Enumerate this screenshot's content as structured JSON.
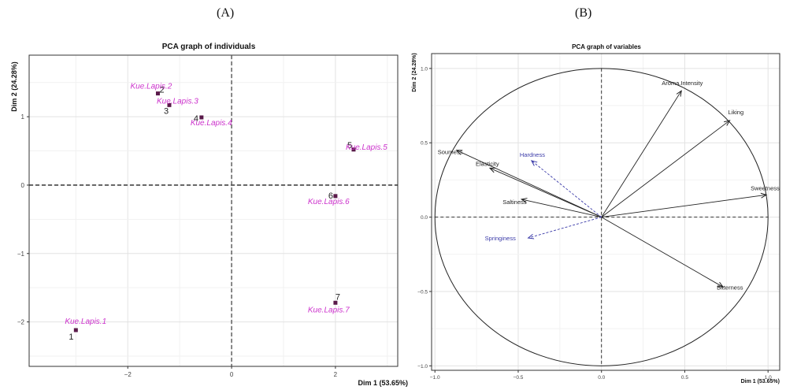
{
  "panel_labels": {
    "a": "(A)",
    "b": "(B)"
  },
  "chart_data": [
    {
      "type": "scatter",
      "title": "PCA graph of individuals",
      "xlabel": "Dim 1 (53.65%)",
      "ylabel": "Dim 2 (24.28%)",
      "xlim": [
        -3.9,
        3.2
      ],
      "ylim": [
        -2.65,
        1.9
      ],
      "xticks": [
        -2,
        0,
        2
      ],
      "yticks": [
        -2,
        -1,
        0,
        1
      ],
      "grid": true,
      "reference_lines": [
        0
      ],
      "point_color": "#5a1a4a",
      "label_color": "#cc33cc",
      "points": [
        {
          "id": "1",
          "name": "Kue.Lapis.1",
          "x": -3.0,
          "y": -2.12
        },
        {
          "id": "2",
          "name": "Kue.Lapis.2",
          "x": -1.42,
          "y": 1.34
        },
        {
          "id": "3",
          "name": "Kue.Lapis.3",
          "x": -1.2,
          "y": 1.17
        },
        {
          "id": "4",
          "name": "Kue.Lapis.4",
          "x": -0.58,
          "y": 0.99
        },
        {
          "id": "5",
          "name": "Kue.Lapis.5",
          "x": 2.35,
          "y": 0.52
        },
        {
          "id": "6",
          "name": "Kue.Lapis.6",
          "x": 2.0,
          "y": -0.16
        },
        {
          "id": "7",
          "name": "Kue.Lapis.7",
          "x": 2.0,
          "y": -1.72
        }
      ]
    },
    {
      "type": "scatter",
      "title": "PCA graph of variables",
      "xlabel": "Dim 1 (53.65%)",
      "ylabel": "Dim 2 (24.28%)",
      "xlim": [
        -1.02,
        1.07
      ],
      "ylim": [
        -1.03,
        1.1
      ],
      "xticks": [
        -1.0,
        -0.5,
        0.0,
        0.5,
        1.0
      ],
      "yticks": [
        -1.0,
        -0.5,
        0.0,
        0.5,
        1.0
      ],
      "grid": true,
      "correlation_circle": true,
      "active_color": "#222222",
      "supplementary_color": "#3a3aa8",
      "variables": [
        {
          "name": "Aroma.Intensity",
          "x": 0.48,
          "y": 0.85,
          "supplementary": false
        },
        {
          "name": "Liking",
          "x": 0.77,
          "y": 0.65,
          "supplementary": false
        },
        {
          "name": "Sweetness",
          "x": 0.99,
          "y": 0.15,
          "supplementary": false
        },
        {
          "name": "Bitterness",
          "x": 0.73,
          "y": -0.47,
          "supplementary": false
        },
        {
          "name": "Sourness",
          "x": -0.87,
          "y": 0.45,
          "supplementary": false
        },
        {
          "name": "Elasticity",
          "x": -0.67,
          "y": 0.33,
          "supplementary": false
        },
        {
          "name": "Saltiness",
          "x": -0.48,
          "y": 0.12,
          "supplementary": false
        },
        {
          "name": "Hardness",
          "x": -0.42,
          "y": 0.38,
          "supplementary": true
        },
        {
          "name": "Springiness",
          "x": -0.44,
          "y": -0.14,
          "supplementary": true
        }
      ]
    }
  ]
}
